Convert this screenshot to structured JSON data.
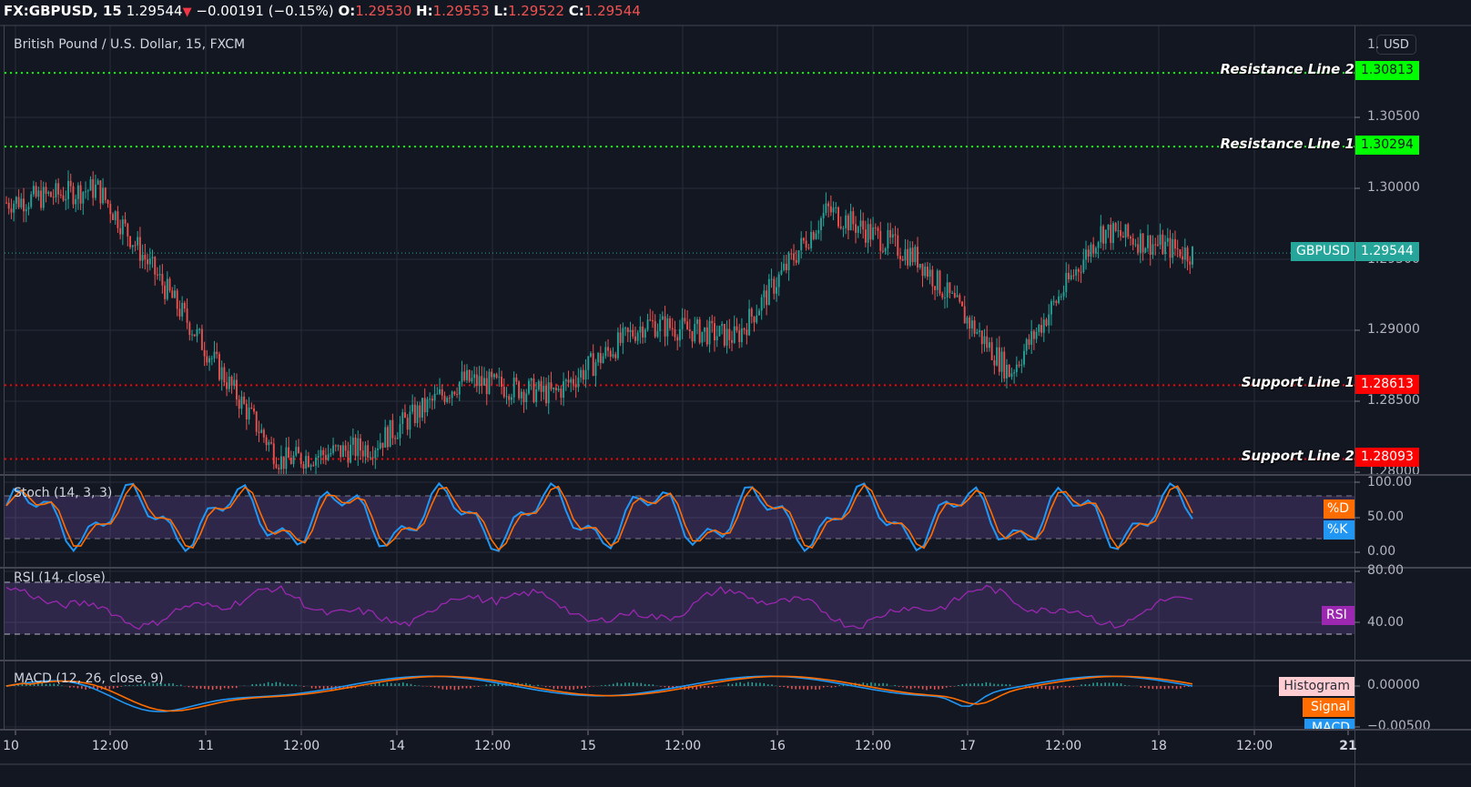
{
  "header": {
    "symbol": "FX:GBPUSD, 15",
    "last_price": "1.29544",
    "change_arrow": "▼",
    "change": "−0.00191 (−0.15%)",
    "open_label": "O:",
    "open": "1.29530",
    "high_label": "H:",
    "high": "1.29553",
    "low_label": "L:",
    "low": "1.29522",
    "close_label": "C:",
    "close": "1.29544"
  },
  "main_pane": {
    "title": "British Pound / U.S. Dollar, 15, FXCM",
    "currency_button": "USD",
    "price_axis": [
      "1.30500",
      "1.30000",
      "1.29500",
      "1.29000",
      "1.28500",
      "1.28000"
    ],
    "top_partial_label": "1.",
    "current_price_tag": {
      "symbol": "GBPUSD",
      "value": "1.29544",
      "color": "#26a69a"
    },
    "horizontal_lines": [
      {
        "label": "Resistance Line 2",
        "value": "1.30813",
        "color": "#00ff00"
      },
      {
        "label": "Resistance Line 1",
        "value": "1.30294",
        "color": "#00ff00"
      },
      {
        "label": "Support Line 1",
        "value": "1.28613",
        "color": "#ff0000"
      },
      {
        "label": "Support Line 2",
        "value": "1.28093",
        "color": "#ff0000"
      }
    ],
    "candle_colors": {
      "up": "#26a69a",
      "down": "#ef5350"
    }
  },
  "stoch_pane": {
    "title": "Stoch (14, 3, 3)",
    "axis": [
      "100.00",
      "50.00",
      "0.00"
    ],
    "tags": [
      {
        "label": "%D",
        "color": "#ff6d00"
      },
      {
        "label": "%K",
        "color": "#2196f3"
      }
    ],
    "band": [
      20,
      80
    ]
  },
  "rsi_pane": {
    "title": "RSI (14, close)",
    "axis": [
      "80.00",
      "40.00"
    ],
    "tags": [
      {
        "label": "RSI",
        "color": "#9c27b0"
      }
    ],
    "band": [
      30,
      70
    ]
  },
  "macd_pane": {
    "title": "MACD (12, 26, close, 9)",
    "axis": [
      "0.00000",
      "−0.00500"
    ],
    "tags": [
      {
        "label": "Histogram",
        "color": "#ffcdd2"
      },
      {
        "label": "Signal",
        "color": "#ff6d00"
      },
      {
        "label": "MACD",
        "color": "#2196f3"
      }
    ]
  },
  "time_axis": [
    "10",
    "12:00",
    "11",
    "12:00",
    "14",
    "12:00",
    "15",
    "12:00",
    "16",
    "12:00",
    "17",
    "12:00",
    "18",
    "12:00",
    "21"
  ],
  "chart_data": {
    "type": "candlestick",
    "title": "British Pound / U.S. Dollar, 15, FXCM",
    "symbol": "FX:GBPUSD",
    "interval": "15",
    "x": [
      "10",
      "10 12:00",
      "11",
      "11 12:00",
      "14",
      "14 12:00",
      "15",
      "15 12:00",
      "16",
      "16 12:00",
      "17",
      "17 12:00",
      "18",
      "18 12:00"
    ],
    "approx_close_path": [
      1.299,
      1.3,
      1.2905,
      1.2808,
      1.2818,
      1.2865,
      1.2855,
      1.2905,
      1.2895,
      1.2985,
      1.295,
      1.287,
      1.297,
      1.2954
    ],
    "ylim": [
      1.28,
      1.31
    ],
    "last": {
      "open": 1.2953,
      "high": 1.29553,
      "low": 1.29522,
      "close": 1.29544,
      "change": -0.00191,
      "change_pct": -0.15
    },
    "horizontal_levels": {
      "Resistance Line 2": 1.30813,
      "Resistance Line 1": 1.30294,
      "Support Line 1": 1.28613,
      "Support Line 2": 1.28093
    },
    "indicators": [
      {
        "name": "Stoch (14, 3, 3)",
        "series": [
          "%K",
          "%D"
        ],
        "ylim": [
          0,
          100
        ],
        "bands": [
          20,
          80
        ]
      },
      {
        "name": "RSI (14, close)",
        "series": [
          "RSI"
        ],
        "ylim": [
          20,
          85
        ],
        "bands": [
          30,
          70
        ]
      },
      {
        "name": "MACD (12, 26, close, 9)",
        "series": [
          "MACD",
          "Signal",
          "Histogram"
        ],
        "ylim": [
          -0.005,
          0.002
        ]
      }
    ],
    "grid": true
  }
}
